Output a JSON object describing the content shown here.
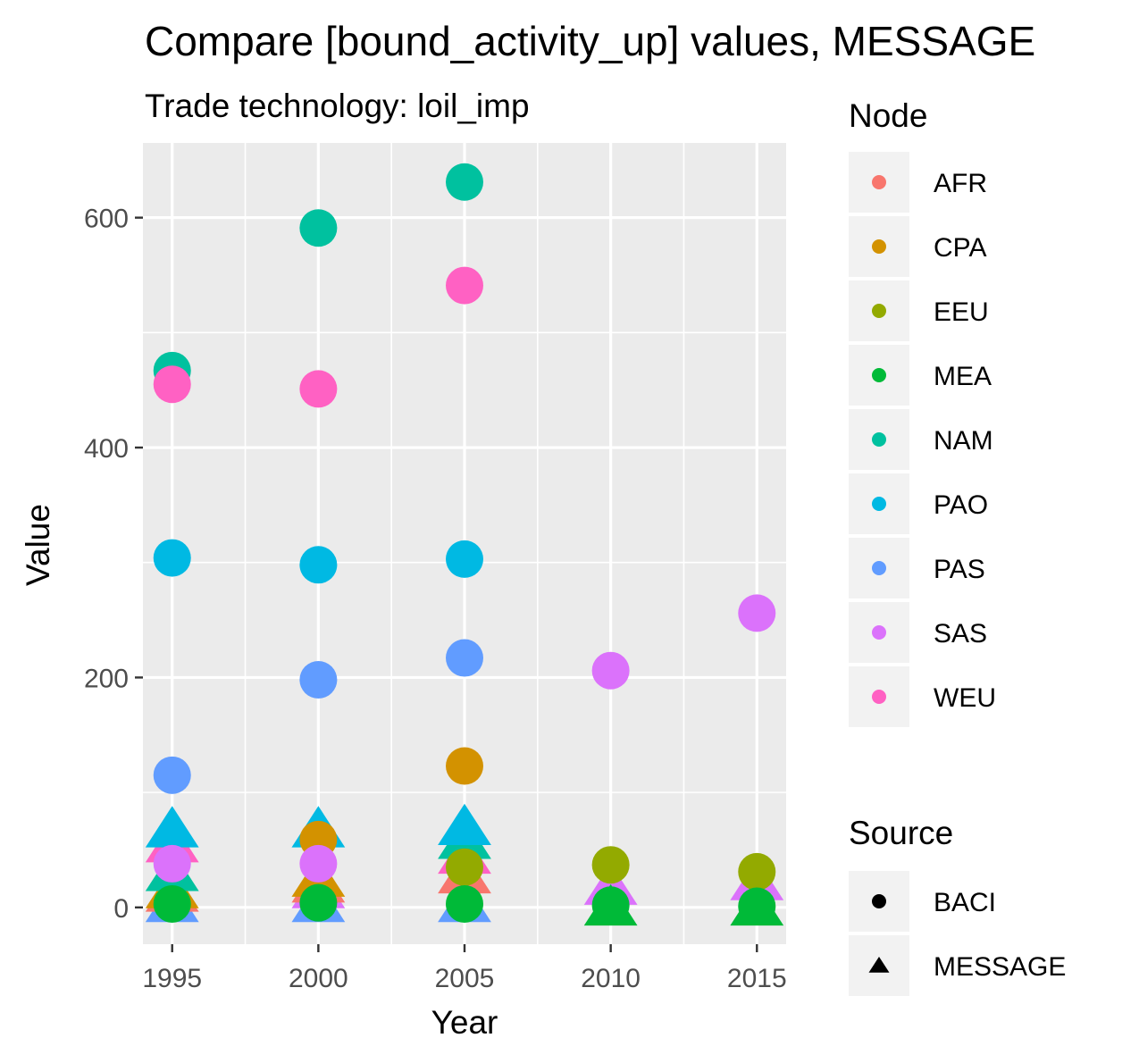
{
  "chart_data": {
    "type": "scatter",
    "title": "Compare [bound_activity_up] values, MESSAGE",
    "subtitle": "Trade technology: loil_imp",
    "xlabel": "Year",
    "ylabel": "Value",
    "x_ticks": [
      1995,
      2000,
      2005,
      2010,
      2015
    ],
    "y_ticks": [
      0,
      200,
      400,
      600
    ],
    "xlim": [
      1994,
      2016
    ],
    "ylim": [
      -32,
      665
    ],
    "grid": true,
    "background": "#ebebeb",
    "legends": [
      {
        "title": "Node",
        "kind": "color",
        "items": [
          {
            "label": "AFR",
            "color": "#F8766D"
          },
          {
            "label": "CPA",
            "color": "#D39200"
          },
          {
            "label": "EEU",
            "color": "#93AA00"
          },
          {
            "label": "MEA",
            "color": "#00BA38"
          },
          {
            "label": "NAM",
            "color": "#00C19F"
          },
          {
            "label": "PAO",
            "color": "#00B9E3"
          },
          {
            "label": "PAS",
            "color": "#619CFF"
          },
          {
            "label": "SAS",
            "color": "#DB72FB"
          },
          {
            "label": "WEU",
            "color": "#FF61C3"
          }
        ]
      },
      {
        "title": "Source",
        "kind": "shape",
        "items": [
          {
            "label": "BACI",
            "shape": "circle"
          },
          {
            "label": "MESSAGE",
            "shape": "triangle"
          }
        ]
      }
    ],
    "series": [
      {
        "source": "MESSAGE",
        "shape": "triangle",
        "points": [
          {
            "node": "PAS",
            "x": 1995,
            "y": 3
          },
          {
            "node": "AFR",
            "x": 1995,
            "y": 12
          },
          {
            "node": "CPA",
            "x": 1995,
            "y": 15
          },
          {
            "node": "NAM",
            "x": 1995,
            "y": 30
          },
          {
            "node": "WEU",
            "x": 1995,
            "y": 55
          },
          {
            "node": "PAO",
            "x": 1995,
            "y": 68
          },
          {
            "node": "PAS",
            "x": 2000,
            "y": 3
          },
          {
            "node": "SAS",
            "x": 2000,
            "y": 15
          },
          {
            "node": "AFR",
            "x": 2000,
            "y": 20
          },
          {
            "node": "CPA",
            "x": 2000,
            "y": 25
          },
          {
            "node": "PAO",
            "x": 2000,
            "y": 68
          },
          {
            "node": "PAS",
            "x": 2005,
            "y": 3
          },
          {
            "node": "AFR",
            "x": 2005,
            "y": 28
          },
          {
            "node": "WEU",
            "x": 2005,
            "y": 45
          },
          {
            "node": "NAM",
            "x": 2005,
            "y": 58
          },
          {
            "node": "PAO",
            "x": 2005,
            "y": 70
          },
          {
            "node": "SAS",
            "x": 2010,
            "y": 18
          },
          {
            "node": "MEA",
            "x": 2010,
            "y": 0
          },
          {
            "node": "SAS",
            "x": 2015,
            "y": 22
          },
          {
            "node": "MEA",
            "x": 2015,
            "y": 0
          }
        ]
      },
      {
        "source": "BACI",
        "shape": "circle",
        "points": [
          {
            "node": "NAM",
            "x": 1995,
            "y": 467
          },
          {
            "node": "WEU",
            "x": 1995,
            "y": 455
          },
          {
            "node": "PAO",
            "x": 1995,
            "y": 304
          },
          {
            "node": "PAS",
            "x": 1995,
            "y": 115
          },
          {
            "node": "SAS",
            "x": 1995,
            "y": 38
          },
          {
            "node": "MEA",
            "x": 1995,
            "y": 3
          },
          {
            "node": "NAM",
            "x": 2000,
            "y": 591
          },
          {
            "node": "WEU",
            "x": 2000,
            "y": 451
          },
          {
            "node": "PAO",
            "x": 2000,
            "y": 298
          },
          {
            "node": "PAS",
            "x": 2000,
            "y": 198
          },
          {
            "node": "CPA",
            "x": 2000,
            "y": 59
          },
          {
            "node": "SAS",
            "x": 2000,
            "y": 38
          },
          {
            "node": "MEA",
            "x": 2000,
            "y": 4
          },
          {
            "node": "NAM",
            "x": 2005,
            "y": 631
          },
          {
            "node": "WEU",
            "x": 2005,
            "y": 541
          },
          {
            "node": "PAO",
            "x": 2005,
            "y": 303
          },
          {
            "node": "PAS",
            "x": 2005,
            "y": 217
          },
          {
            "node": "CPA",
            "x": 2005,
            "y": 123
          },
          {
            "node": "EEU",
            "x": 2005,
            "y": 35
          },
          {
            "node": "MEA",
            "x": 2005,
            "y": 3
          },
          {
            "node": "SAS",
            "x": 2010,
            "y": 206
          },
          {
            "node": "EEU",
            "x": 2010,
            "y": 37
          },
          {
            "node": "MEA",
            "x": 2010,
            "y": 2
          },
          {
            "node": "SAS",
            "x": 2015,
            "y": 256
          },
          {
            "node": "EEU",
            "x": 2015,
            "y": 31
          },
          {
            "node": "MEA",
            "x": 2015,
            "y": 1
          }
        ]
      }
    ]
  }
}
